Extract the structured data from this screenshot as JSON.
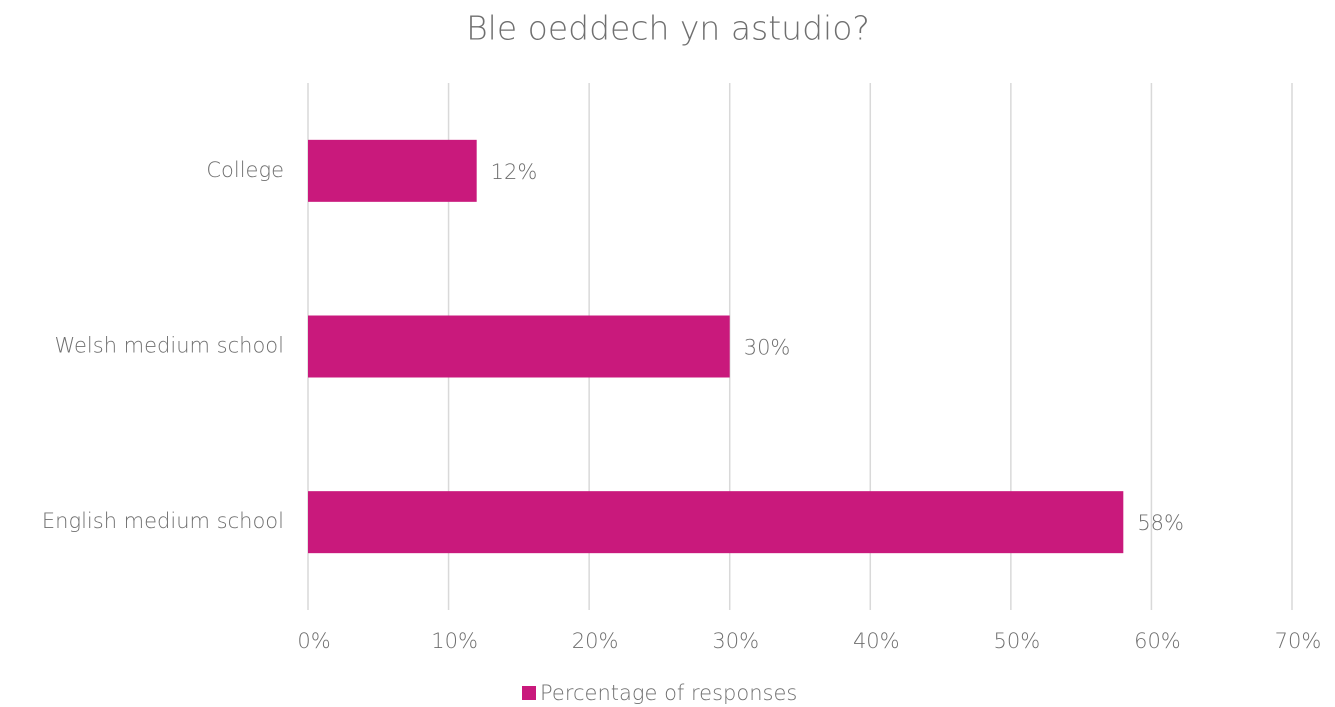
{
  "chart_data": {
    "type": "bar",
    "orientation": "horizontal",
    "title": "Ble oeddech yn astudio?",
    "categories": [
      "College",
      "Welsh medium school",
      "English medium school"
    ],
    "series": [
      {
        "name": "Percentage of responses",
        "color": "#c9197c",
        "values": [
          12,
          30,
          58
        ],
        "value_labels": [
          "12%",
          "30%",
          "58%"
        ]
      }
    ],
    "xlim": [
      0,
      70
    ],
    "xticks": [
      {
        "value": 0,
        "label": "0%"
      },
      {
        "value": 10,
        "label": "10%"
      },
      {
        "value": 20,
        "label": "20%"
      },
      {
        "value": 30,
        "label": "30%"
      },
      {
        "value": 40,
        "label": "40%"
      },
      {
        "value": 50,
        "label": "50%"
      },
      {
        "value": 60,
        "label": "60%"
      },
      {
        "value": 70,
        "label": "70%"
      }
    ],
    "grid": true,
    "legend": "bottom"
  }
}
